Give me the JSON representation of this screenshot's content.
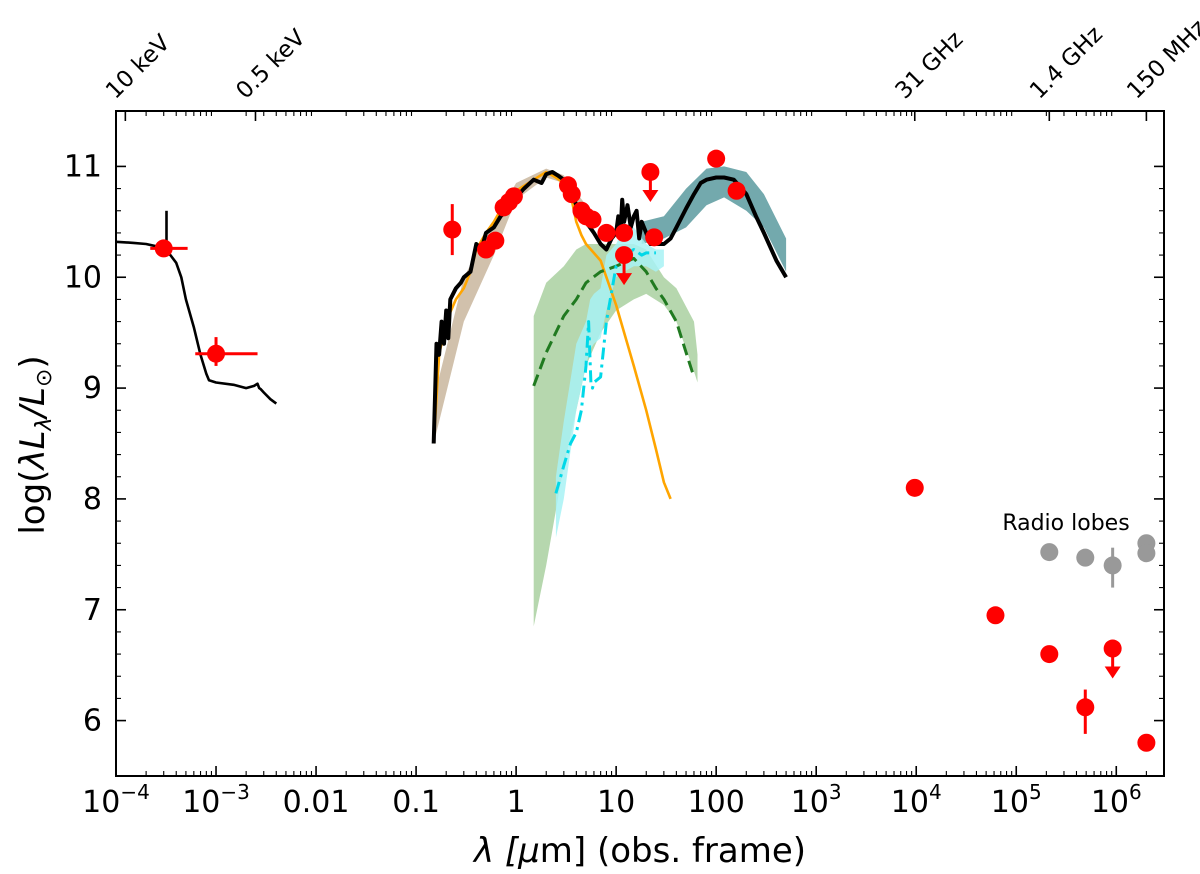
{
  "chart_data": {
    "type": "scatter",
    "xscale": "log",
    "xlim": [
      0.0001,
      3000000
    ],
    "ylim": [
      5.5,
      11.5
    ],
    "xlabel_parts": [
      "λ [",
      "μ",
      "m] (obs. frame)"
    ],
    "ylabel_parts": [
      "log(",
      "λL",
      "λ",
      "/L",
      "⊙",
      ")"
    ],
    "x_ticks": [
      {
        "value": 0.0001,
        "base": "10",
        "exp": "−4"
      },
      {
        "value": 0.001,
        "base": "10",
        "exp": "−3"
      },
      {
        "value": 0.01,
        "text": "0.01"
      },
      {
        "value": 0.1,
        "text": "0.1"
      },
      {
        "value": 1,
        "text": "1"
      },
      {
        "value": 10,
        "text": "10"
      },
      {
        "value": 100,
        "text": "100"
      },
      {
        "value": 1000,
        "base": "10",
        "exp": "3"
      },
      {
        "value": 10000,
        "base": "10",
        "exp": "4"
      },
      {
        "value": 100000,
        "base": "10",
        "exp": "5"
      },
      {
        "value": 1000000,
        "base": "10",
        "exp": "6"
      }
    ],
    "y_ticks": [
      {
        "value": 6,
        "text": "6"
      },
      {
        "value": 7,
        "text": "7"
      },
      {
        "value": 8,
        "text": "8"
      },
      {
        "value": 9,
        "text": "9"
      },
      {
        "value": 10,
        "text": "10"
      },
      {
        "value": 11,
        "text": "11"
      }
    ],
    "top_ticks": [
      {
        "value": 0.000124,
        "label": "10 keV"
      },
      {
        "value": 0.00248,
        "label": "0.5 keV"
      },
      {
        "value": 9670,
        "label": "31 GHz"
      },
      {
        "value": 214000,
        "label": "1.4 GHz"
      },
      {
        "value": 2000000,
        "label": "150 MHz"
      }
    ],
    "annotations": [
      {
        "text": "Radio lobes",
        "x": 1000000,
        "y": 7.62
      }
    ],
    "bands": [
      {
        "name": "total-model-band",
        "color": "#c9b69e",
        "x": [
          0.15,
          0.3,
          0.6,
          1,
          2,
          3,
          5
        ],
        "lower": [
          8.5,
          9.6,
          10.2,
          10.7,
          10.9,
          10.85,
          10.5
        ],
        "upper": [
          8.9,
          10.0,
          10.5,
          10.85,
          10.98,
          10.92,
          10.65
        ]
      },
      {
        "name": "far-ir-model-band",
        "color": "#5b9a9f",
        "x": [
          18,
          30,
          50,
          80,
          120,
          200,
          300,
          500
        ],
        "lower": [
          10.3,
          10.35,
          10.45,
          10.65,
          10.72,
          10.6,
          10.45,
          10.05
        ],
        "upper": [
          10.5,
          10.55,
          10.8,
          10.98,
          11.0,
          10.95,
          10.75,
          10.35
        ]
      },
      {
        "name": "torus-band",
        "color": "#a9d0a0",
        "x": [
          1.5,
          2,
          3,
          4,
          5,
          7,
          10,
          15,
          20,
          30,
          40,
          60,
          65
        ],
        "lower": [
          6.85,
          7.4,
          8.3,
          8.8,
          9.2,
          9.5,
          9.7,
          9.8,
          9.85,
          9.75,
          9.6,
          9.15,
          9.05
        ],
        "upper": [
          9.65,
          9.95,
          10.1,
          10.25,
          10.3,
          10.3,
          10.3,
          10.3,
          10.25,
          10.0,
          9.9,
          9.6,
          9.3
        ]
      },
      {
        "name": "agn-band",
        "color": "#a8f2f5",
        "x": [
          2.5,
          3,
          4,
          5,
          5.5,
          6,
          7,
          8,
          10,
          12,
          15,
          20,
          25,
          30
        ],
        "lower": [
          7.65,
          8.0,
          8.8,
          9.2,
          9.35,
          9.4,
          9.45,
          9.7,
          10.0,
          10.05,
          10.1,
          10.1,
          10.05,
          10.1
        ],
        "upper": [
          8.2,
          8.7,
          9.4,
          9.6,
          9.8,
          9.85,
          9.9,
          10.2,
          10.3,
          10.45,
          10.45,
          10.3,
          10.25,
          10.25
        ]
      }
    ],
    "series": [
      {
        "name": "xray-model",
        "style": "solid",
        "color": "#000000",
        "width": 2.6,
        "x": [
          0.0001,
          0.00015,
          0.0002,
          0.00025,
          0.00028,
          0.0003,
          0.00035,
          0.0004,
          0.00045,
          0.0005,
          0.0006,
          0.0007,
          0.0008,
          0.00085,
          0.001,
          0.0015,
          0.002,
          0.0024,
          0.0026,
          0.0027,
          0.0028,
          0.003,
          0.0035,
          0.004
        ],
        "y": [
          10.32,
          10.31,
          10.3,
          10.28,
          10.27,
          10.25,
          10.2,
          10.13,
          10.0,
          9.8,
          9.55,
          9.3,
          9.13,
          9.07,
          9.05,
          9.03,
          9.0,
          9.02,
          9.04,
          9.0,
          8.99,
          8.96,
          8.9,
          8.86
        ]
      },
      {
        "name": "xray-spike",
        "style": "solid",
        "color": "#000000",
        "width": 2.6,
        "x": [
          0.00032,
          0.00032
        ],
        "y": [
          10.28,
          10.6
        ]
      },
      {
        "name": "stellar-component",
        "style": "solid",
        "color": "#ffa500",
        "width": 2.6,
        "x": [
          0.15,
          0.17,
          0.2,
          0.25,
          0.3,
          0.35,
          0.4,
          0.5,
          0.6,
          0.8,
          1,
          1.5,
          2,
          2.5,
          3,
          3.5,
          4,
          4.5,
          5,
          7,
          10,
          15,
          20,
          25,
          30,
          35
        ],
        "y": [
          8.5,
          9.3,
          9.6,
          9.8,
          9.9,
          10.05,
          10.25,
          10.4,
          10.5,
          10.7,
          10.78,
          10.88,
          10.95,
          10.9,
          10.85,
          10.75,
          10.5,
          10.38,
          10.3,
          10.15,
          9.75,
          9.2,
          8.8,
          8.45,
          8.15,
          8.0
        ]
      },
      {
        "name": "torus-component",
        "style": "dashed",
        "color": "#207a20",
        "width": 3,
        "x": [
          1.5,
          2,
          3,
          4,
          5,
          7,
          10,
          15,
          20,
          25,
          30,
          40,
          50,
          60
        ],
        "y": [
          9.02,
          9.32,
          9.65,
          9.8,
          9.95,
          10.05,
          10.1,
          10.17,
          10.05,
          9.9,
          9.8,
          9.6,
          9.32,
          9.1
        ]
      },
      {
        "name": "agn-component",
        "style": "dashdot",
        "color": "#00d8e8",
        "width": 3,
        "x": [
          2.5,
          3,
          3.5,
          4,
          4.5,
          5,
          5.3,
          5.6,
          5.8,
          6,
          7,
          8,
          10,
          12,
          15,
          18,
          20,
          25
        ],
        "y": [
          8.05,
          8.3,
          8.5,
          8.6,
          8.8,
          9.2,
          9.6,
          9.05,
          9.0,
          9.05,
          9.1,
          9.6,
          10.1,
          10.2,
          10.25,
          10.2,
          10.22,
          10.22
        ]
      },
      {
        "name": "total-model",
        "style": "solid",
        "color": "#000000",
        "width": 4,
        "x": [
          0.15,
          0.16,
          0.17,
          0.18,
          0.19,
          0.2,
          0.21,
          0.22,
          0.25,
          0.28,
          0.3,
          0.35,
          0.4,
          0.45,
          0.5,
          0.6,
          0.7,
          0.8,
          0.9,
          1,
          1.2,
          1.5,
          1.8,
          2,
          2.3,
          2.6,
          3,
          3.5,
          4,
          4.5,
          5,
          6,
          7,
          8,
          9,
          10,
          10.5,
          11,
          11.5,
          12,
          13,
          14,
          15,
          16,
          17,
          18,
          20,
          22,
          25,
          30,
          35,
          40,
          50,
          60,
          70,
          80,
          100,
          120,
          150,
          200,
          250,
          300,
          400,
          500
        ],
        "y": [
          8.5,
          9.4,
          9.3,
          9.6,
          9.4,
          9.7,
          9.45,
          9.8,
          9.9,
          9.95,
          10.0,
          10.05,
          10.3,
          10.25,
          10.4,
          10.45,
          10.55,
          10.6,
          10.65,
          10.72,
          10.8,
          10.88,
          10.85,
          10.93,
          10.95,
          10.92,
          10.88,
          10.8,
          10.65,
          10.55,
          10.5,
          10.4,
          10.3,
          10.25,
          10.35,
          10.4,
          10.55,
          10.35,
          10.7,
          10.5,
          10.65,
          10.45,
          10.55,
          10.6,
          10.35,
          10.5,
          10.4,
          10.3,
          10.3,
          10.3,
          10.35,
          10.45,
          10.62,
          10.75,
          10.85,
          10.88,
          10.9,
          10.9,
          10.88,
          10.75,
          10.55,
          10.4,
          10.15,
          10.0
        ]
      }
    ],
    "points": [
      {
        "name": "xray-point",
        "x": 0.0003,
        "y": 10.26,
        "color": "#ff0000",
        "xerr": [
          0.00022,
          0.00052
        ],
        "yerr": [
          10.2,
          10.32
        ]
      },
      {
        "name": "xray-point",
        "x": 0.001,
        "y": 9.31,
        "color": "#ff0000",
        "xerr": [
          0.00062,
          0.0026
        ],
        "yerr": [
          9.2,
          9.46
        ]
      },
      {
        "name": "sed-point",
        "x": 0.23,
        "y": 10.43,
        "color": "#ff0000",
        "yerr": [
          10.2,
          10.66
        ]
      },
      {
        "name": "sed-point",
        "x": 0.5,
        "y": 10.25,
        "color": "#ff0000"
      },
      {
        "name": "sed-point",
        "x": 0.62,
        "y": 10.33,
        "color": "#ff0000"
      },
      {
        "name": "sed-point",
        "x": 0.75,
        "y": 10.63,
        "color": "#ff0000"
      },
      {
        "name": "sed-point",
        "x": 0.85,
        "y": 10.68,
        "color": "#ff0000"
      },
      {
        "name": "sed-point",
        "x": 0.95,
        "y": 10.73,
        "color": "#ff0000"
      },
      {
        "name": "sed-point",
        "x": 3.3,
        "y": 10.83,
        "color": "#ff0000"
      },
      {
        "name": "sed-point",
        "x": 3.6,
        "y": 10.75,
        "color": "#ff0000"
      },
      {
        "name": "sed-point",
        "x": 4.5,
        "y": 10.6,
        "color": "#ff0000"
      },
      {
        "name": "sed-point",
        "x": 5,
        "y": 10.55,
        "color": "#ff0000"
      },
      {
        "name": "sed-point",
        "x": 5.8,
        "y": 10.52,
        "color": "#ff0000"
      },
      {
        "name": "sed-point",
        "x": 8,
        "y": 10.4,
        "color": "#ff0000"
      },
      {
        "name": "sed-point",
        "x": 12,
        "y": 10.4,
        "color": "#ff0000"
      },
      {
        "name": "sed-point",
        "x": 12,
        "y": 10.2,
        "color": "#ff0000",
        "upper_limit": true
      },
      {
        "name": "sed-point",
        "x": 22,
        "y": 10.95,
        "color": "#ff0000",
        "upper_limit": true
      },
      {
        "name": "sed-point",
        "x": 24,
        "y": 10.36,
        "color": "#ff0000"
      },
      {
        "name": "sed-point",
        "x": 100,
        "y": 11.07,
        "color": "#ff0000"
      },
      {
        "name": "sed-point",
        "x": 160,
        "y": 10.78,
        "color": "#ff0000"
      },
      {
        "name": "radio-core-point",
        "x": 9670,
        "y": 8.1,
        "color": "#ff0000"
      },
      {
        "name": "radio-core-point",
        "x": 62000,
        "y": 6.95,
        "color": "#ff0000"
      },
      {
        "name": "radio-core-point",
        "x": 214000,
        "y": 6.6,
        "color": "#ff0000"
      },
      {
        "name": "radio-core-point",
        "x": 490000,
        "y": 6.12,
        "color": "#ff0000",
        "yerr": [
          5.88,
          6.28
        ]
      },
      {
        "name": "radio-core-point",
        "x": 920000,
        "y": 6.65,
        "color": "#ff0000",
        "upper_limit": true
      },
      {
        "name": "radio-core-point",
        "x": 2000000,
        "y": 5.8,
        "color": "#ff0000"
      },
      {
        "name": "radio-lobe-point",
        "x": 214000,
        "y": 7.52,
        "color": "#999999"
      },
      {
        "name": "radio-lobe-point",
        "x": 490000,
        "y": 7.47,
        "color": "#999999"
      },
      {
        "name": "radio-lobe-point",
        "x": 920000,
        "y": 7.4,
        "color": "#999999",
        "yerr": [
          7.2,
          7.56
        ]
      },
      {
        "name": "radio-lobe-point",
        "x": 2000000,
        "y": 7.6,
        "color": "#999999"
      },
      {
        "name": "radio-lobe-point",
        "x": 2000000,
        "y": 7.51,
        "color": "#999999"
      }
    ]
  }
}
